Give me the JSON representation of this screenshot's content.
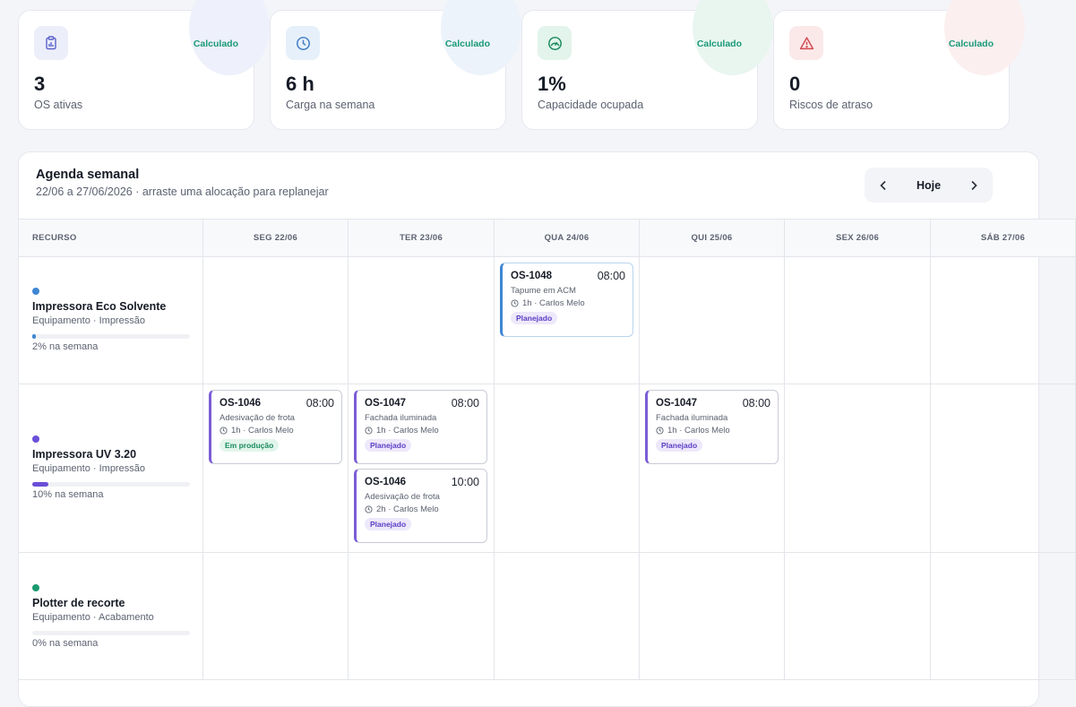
{
  "kpis": [
    {
      "tag": "Calculado",
      "value": "3",
      "label": "OS ativas",
      "icon": "clipboard-chart-icon",
      "blob": "#eef0fb",
      "ic_bg": "#eceefa",
      "ic_color": "#5b63c9"
    },
    {
      "tag": "Calculado",
      "value": "6 h",
      "label": "Carga na semana",
      "icon": "clock-icon",
      "blob": "#edf3fb",
      "ic_bg": "#e6f0fa",
      "ic_color": "#3f7cc4"
    },
    {
      "tag": "Calculado",
      "value": "1%",
      "label": "Capacidade ocupada",
      "icon": "gauge-icon",
      "blob": "#e9f6f0",
      "ic_bg": "#e2f4ec",
      "ic_color": "#1a8a5e"
    },
    {
      "tag": "Calculado",
      "value": "0",
      "label": "Riscos de atraso",
      "icon": "warning-icon",
      "blob": "#fbeff0",
      "ic_bg": "#fbe9ea",
      "ic_color": "#d24a50"
    }
  ],
  "agenda": {
    "title": "Agenda semanal",
    "subtitle": "22/06 a 27/06/2026 · arraste uma alocação para replanejar",
    "today_label": "Hoje",
    "columns": [
      "RECURSO",
      "SEG 22/06",
      "TER 23/06",
      "QUA 24/06",
      "QUI 25/06",
      "SEX 26/06",
      "SÁB 27/06"
    ],
    "resources": [
      {
        "name": "Impressora Eco Solvente",
        "type": "Equipamento · Impressão",
        "pct_label": "2% na semana",
        "load": 0.02,
        "color": "#3f86d4"
      },
      {
        "name": "Impressora UV 3.20",
        "type": "Equipamento · Impressão",
        "pct_label": "10% na semana",
        "load": 0.1,
        "color": "#6a4fd8"
      },
      {
        "name": "Plotter de recorte",
        "type": "Equipamento · Acabamento",
        "pct_label": "0% na semana",
        "load": 0.0,
        "color": "#1a9a6e"
      }
    ],
    "events": [
      {
        "code": "OS-1048",
        "time": "08:00",
        "desc": "Tapume em ACM",
        "meta": "1h · Carlos Melo",
        "status": "Planejado",
        "status_kind": "plan",
        "accent": "#3f86d4"
      },
      {
        "code": "OS-1046",
        "time": "08:00",
        "desc": "Adesivação de frota",
        "meta": "1h · Carlos Melo",
        "status": "Em produção",
        "status_kind": "prod",
        "accent": "#7b5cd6"
      },
      {
        "code": "OS-1047",
        "time": "08:00",
        "desc": "Fachada iluminada",
        "meta": "1h · Carlos Melo",
        "status": "Planejado",
        "status_kind": "plan",
        "accent": "#7b5cd6"
      },
      {
        "code": "OS-1046",
        "time": "10:00",
        "desc": "Adesivação de frota",
        "meta": "2h · Carlos Melo",
        "status": "Planejado",
        "status_kind": "plan",
        "accent": "#7b5cd6"
      },
      {
        "code": "OS-1047",
        "time": "08:00",
        "desc": "Fachada iluminada",
        "meta": "1h · Carlos Melo",
        "status": "Planejado",
        "status_kind": "plan",
        "accent": "#7b5cd6"
      }
    ]
  }
}
